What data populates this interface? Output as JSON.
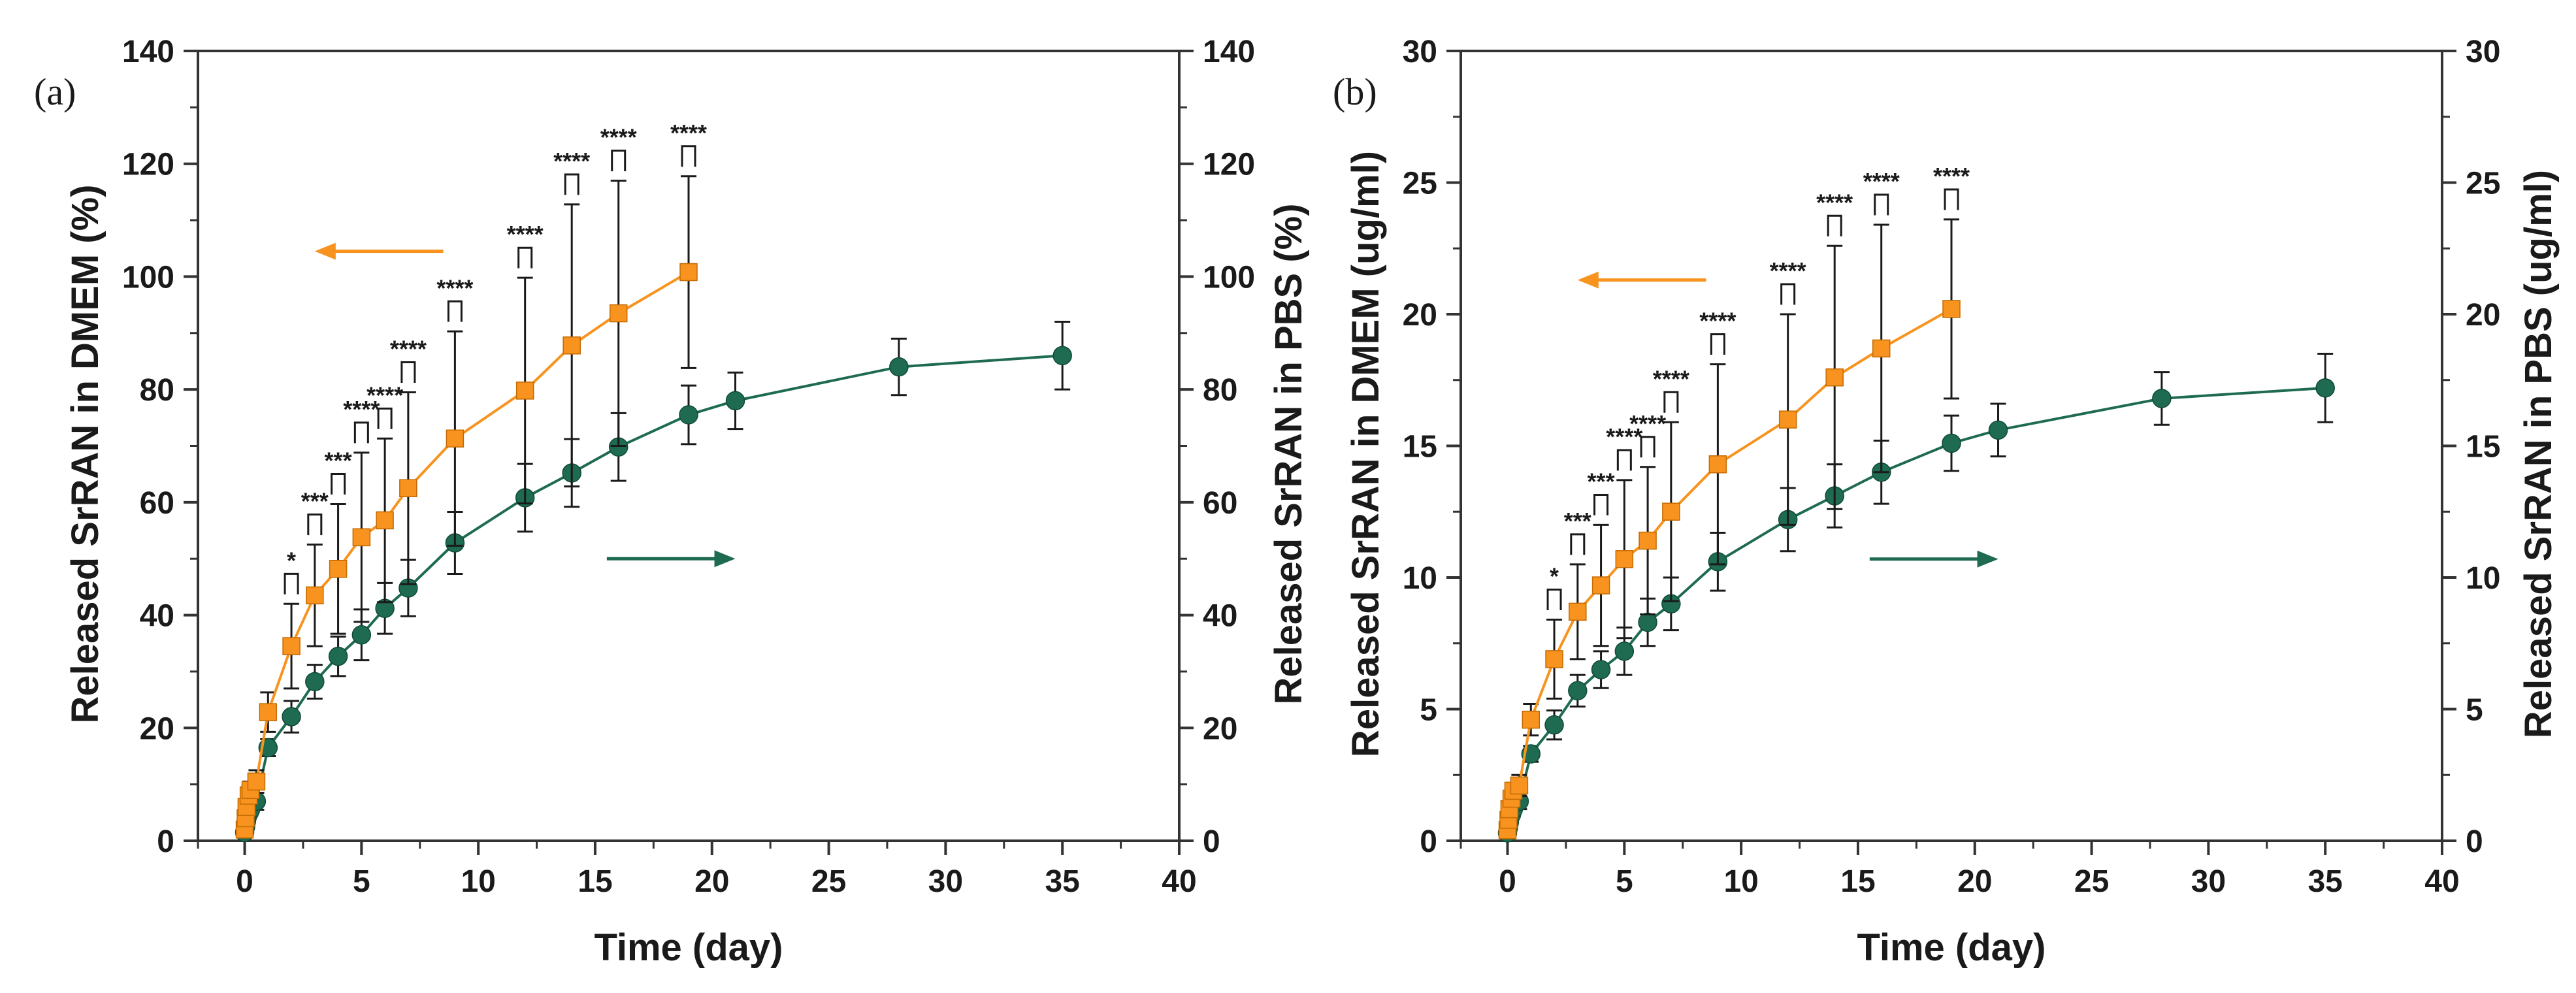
{
  "chart_data": [
    {
      "type": "line",
      "panel_label": "(a)",
      "xlabel": "Time (day)",
      "ylabel_left": "Released SrRAN in DMEM (%)",
      "ylabel_right": "Released SrRAN in PBS (%)",
      "xlim": [
        -2,
        40
      ],
      "ylim": [
        0,
        140
      ],
      "x_ticks": [
        0,
        5,
        10,
        15,
        20,
        25,
        30,
        35,
        40
      ],
      "y_ticks": [
        0,
        20,
        40,
        60,
        80,
        100,
        120,
        140
      ],
      "grid": false,
      "series": [
        {
          "name": "DMEM",
          "color": "#f7931e",
          "marker": "square",
          "axis": "left",
          "x": [
            0,
            0.04,
            0.08,
            0.17,
            0.25,
            0.5,
            1,
            2,
            3,
            4,
            5,
            6,
            7,
            9,
            12,
            14,
            16,
            19
          ],
          "y": [
            2,
            4,
            6,
            8,
            9,
            10.5,
            22.8,
            34.5,
            43.5,
            48.2,
            53.8,
            56.8,
            62.5,
            71.3,
            79.8,
            87.8,
            93.5,
            100.8
          ],
          "err": [
            0.5,
            0.8,
            1,
            1.5,
            1.5,
            2,
            3.5,
            7.5,
            9,
            11.5,
            15,
            14.5,
            17,
            19,
            20,
            25,
            23.5,
            17
          ]
        },
        {
          "name": "PBS",
          "color": "#1e6b52",
          "marker": "circle",
          "axis": "right",
          "x": [
            0,
            0.04,
            0.08,
            0.17,
            0.25,
            0.5,
            1,
            2,
            3,
            4,
            5,
            6,
            7,
            9,
            12,
            14,
            16,
            19,
            21,
            28,
            35
          ],
          "y": [
            1.5,
            2.5,
            3.5,
            4.8,
            5.5,
            7,
            16.5,
            22,
            28.2,
            32.7,
            36.5,
            41.2,
            44.8,
            52.8,
            60.8,
            65.2,
            69.8,
            75.5,
            78,
            84,
            86
          ],
          "err": [
            0.5,
            0.5,
            0.8,
            1,
            1,
            1.5,
            1.5,
            2.8,
            3,
            3.5,
            4.5,
            4.5,
            5,
            5.5,
            6,
            6,
            6,
            5.2,
            5,
            5,
            6
          ]
        }
      ],
      "significance": [
        {
          "x": 2,
          "label": "*"
        },
        {
          "x": 3,
          "label": "***"
        },
        {
          "x": 4,
          "label": "***"
        },
        {
          "x": 5,
          "label": "****"
        },
        {
          "x": 6,
          "label": "****"
        },
        {
          "x": 7,
          "label": "****"
        },
        {
          "x": 9,
          "label": "****"
        },
        {
          "x": 12,
          "label": "****"
        },
        {
          "x": 14,
          "label": "****"
        },
        {
          "x": 16,
          "label": "****"
        },
        {
          "x": 19,
          "label": "****"
        }
      ],
      "annotations": [
        {
          "type": "arrow",
          "direction": "left",
          "color": "#f7931e",
          "x_from": 8.5,
          "x_to": 3,
          "y": 104.5
        },
        {
          "type": "arrow",
          "direction": "right",
          "color": "#1e6b52",
          "x_from": 15.5,
          "x_to": 21,
          "y": 50
        }
      ]
    },
    {
      "type": "line",
      "panel_label": "(b)",
      "xlabel": "Time (day)",
      "ylabel_left": "Released SrRAN in DMEM (ug/ml)",
      "ylabel_right": "Released SrRAN in PBS (ug/ml)",
      "xlim": [
        -2,
        40
      ],
      "ylim": [
        0,
        30
      ],
      "x_ticks": [
        0,
        5,
        10,
        15,
        20,
        25,
        30,
        35,
        40
      ],
      "y_ticks": [
        0,
        5,
        10,
        15,
        20,
        25,
        30
      ],
      "grid": false,
      "series": [
        {
          "name": "DMEM",
          "color": "#f7931e",
          "marker": "square",
          "axis": "left",
          "x": [
            0,
            0.04,
            0.08,
            0.17,
            0.25,
            0.5,
            1,
            2,
            3,
            4,
            5,
            6,
            7,
            9,
            12,
            14,
            16,
            19
          ],
          "y": [
            0.4,
            0.8,
            1.2,
            1.6,
            1.9,
            2.1,
            4.6,
            6.9,
            8.7,
            9.7,
            10.7,
            11.4,
            12.5,
            14.3,
            16,
            17.6,
            18.7,
            20.2
          ],
          "err": [
            0.1,
            0.2,
            0.2,
            0.3,
            0.3,
            0.4,
            0.6,
            1.5,
            1.8,
            2.3,
            3,
            2.8,
            3.4,
            3.8,
            4,
            5,
            4.7,
            3.4
          ]
        },
        {
          "name": "PBS",
          "color": "#1e6b52",
          "marker": "circle",
          "axis": "right",
          "x": [
            0,
            0.04,
            0.08,
            0.17,
            0.25,
            0.5,
            1,
            2,
            3,
            4,
            5,
            6,
            7,
            9,
            12,
            14,
            16,
            19,
            21,
            28,
            35
          ],
          "y": [
            0.3,
            0.5,
            0.7,
            1,
            1.2,
            1.5,
            3.3,
            4.4,
            5.7,
            6.5,
            7.2,
            8.3,
            9,
            10.6,
            12.2,
            13.1,
            14,
            15.1,
            15.6,
            16.8,
            17.2
          ],
          "err": [
            0.1,
            0.1,
            0.2,
            0.2,
            0.2,
            0.3,
            0.3,
            0.55,
            0.6,
            0.7,
            0.9,
            0.9,
            1,
            1.1,
            1.2,
            1.2,
            1.2,
            1.05,
            1,
            1,
            1.3
          ]
        }
      ],
      "significance": [
        {
          "x": 2,
          "label": "*"
        },
        {
          "x": 3,
          "label": "***"
        },
        {
          "x": 4,
          "label": "***"
        },
        {
          "x": 5,
          "label": "****"
        },
        {
          "x": 6,
          "label": "****"
        },
        {
          "x": 7,
          "label": "****"
        },
        {
          "x": 9,
          "label": "****"
        },
        {
          "x": 12,
          "label": "****"
        },
        {
          "x": 14,
          "label": "****"
        },
        {
          "x": 16,
          "label": "****"
        },
        {
          "x": 19,
          "label": "****"
        }
      ],
      "annotations": [
        {
          "type": "arrow",
          "direction": "left",
          "color": "#f7931e",
          "x_from": 8.5,
          "x_to": 3,
          "y": 21.3
        },
        {
          "type": "arrow",
          "direction": "right",
          "color": "#1e6b52",
          "x_from": 15.5,
          "x_to": 21,
          "y": 10.7
        }
      ]
    }
  ]
}
